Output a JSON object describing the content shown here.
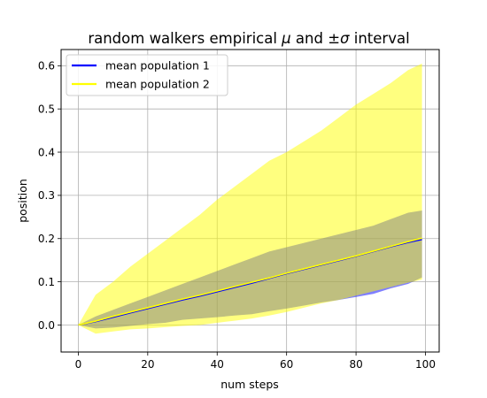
{
  "chart_data": {
    "type": "area",
    "title_prefix": "random walkers empirical ",
    "title_mu": "μ",
    "title_mid": " and ",
    "title_pm": "±",
    "title_sigma": "σ",
    "title_suffix": " interval",
    "xlabel": "num steps",
    "ylabel": "position",
    "xlim": [
      -4.95,
      103.95
    ],
    "ylim": [
      -0.0625,
      0.6375
    ],
    "xticks": [
      0,
      20,
      40,
      60,
      80,
      100
    ],
    "yticks": [
      0.0,
      0.1,
      0.2,
      0.3,
      0.4,
      0.5,
      0.6
    ],
    "xtick_labels": [
      "0",
      "20",
      "40",
      "60",
      "80",
      "100"
    ],
    "ytick_labels": [
      "0.0",
      "0.1",
      "0.2",
      "0.3",
      "0.4",
      "0.5",
      "0.6"
    ],
    "grid": true,
    "legend_position": "top-left",
    "series": [
      {
        "name": "mean population 1",
        "color": "#0000ff",
        "band_color": "#0000ff",
        "band_opacity": 0.5,
        "x": [
          0,
          5,
          10,
          15,
          20,
          25,
          30,
          35,
          40,
          45,
          50,
          55,
          60,
          65,
          70,
          75,
          80,
          85,
          90,
          95,
          99
        ],
        "mean": [
          0.0,
          0.008,
          0.018,
          0.028,
          0.038,
          0.048,
          0.058,
          0.067,
          0.077,
          0.087,
          0.097,
          0.108,
          0.119,
          0.129,
          0.139,
          0.149,
          0.159,
          0.17,
          0.181,
          0.191,
          0.198
        ],
        "lower": [
          0.0,
          -0.008,
          -0.006,
          -0.002,
          0.002,
          0.005,
          0.012,
          0.015,
          0.018,
          0.022,
          0.025,
          0.032,
          0.038,
          0.045,
          0.052,
          0.058,
          0.065,
          0.072,
          0.085,
          0.095,
          0.11
        ],
        "upper": [
          0.0,
          0.02,
          0.035,
          0.05,
          0.065,
          0.08,
          0.095,
          0.11,
          0.125,
          0.14,
          0.155,
          0.17,
          0.18,
          0.19,
          0.2,
          0.21,
          0.22,
          0.23,
          0.245,
          0.26,
          0.265
        ]
      },
      {
        "name": "mean population 2",
        "color": "#ffff00",
        "band_color": "#ffff00",
        "band_opacity": 0.5,
        "x": [
          0,
          5,
          10,
          15,
          20,
          25,
          30,
          35,
          40,
          45,
          50,
          55,
          60,
          65,
          70,
          75,
          80,
          85,
          90,
          95,
          99
        ],
        "mean": [
          0.0,
          0.009,
          0.02,
          0.03,
          0.04,
          0.05,
          0.06,
          0.069,
          0.079,
          0.089,
          0.099,
          0.109,
          0.12,
          0.13,
          0.14,
          0.15,
          0.16,
          0.171,
          0.182,
          0.193,
          0.201
        ],
        "lower": [
          0.0,
          -0.02,
          -0.015,
          -0.01,
          -0.008,
          -0.005,
          -0.002,
          0.0,
          0.005,
          0.01,
          0.015,
          0.022,
          0.03,
          0.04,
          0.05,
          0.058,
          0.068,
          0.078,
          0.088,
          0.098,
          0.105
        ],
        "upper": [
          0.0,
          0.07,
          0.1,
          0.135,
          0.165,
          0.195,
          0.225,
          0.255,
          0.29,
          0.32,
          0.35,
          0.38,
          0.4,
          0.425,
          0.45,
          0.48,
          0.51,
          0.535,
          0.56,
          0.59,
          0.605
        ]
      }
    ],
    "overlap_color": "#b6b57a"
  }
}
